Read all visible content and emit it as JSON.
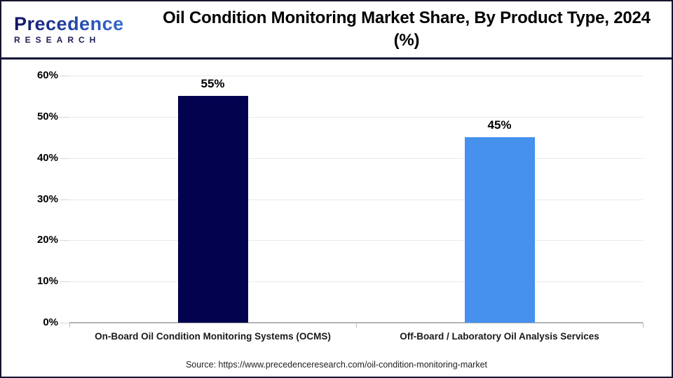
{
  "logo": {
    "word1": "Precedence",
    "word2": "RESEARCH"
  },
  "header": {
    "title": "Oil Condition Monitoring Market Share, By Product Type, 2024 (%)"
  },
  "source": "Source: https://www.precedenceresearch.com/oil-condition-monitoring-market",
  "chart_data": {
    "type": "bar",
    "title": "Oil Condition Monitoring Market Share, By Product Type, 2024 (%)",
    "categories": [
      "On-Board Oil Condition Monitoring Systems (OCMS)",
      "Off-Board / Laboratory Oil Analysis Services"
    ],
    "values": [
      55,
      45
    ],
    "value_labels": [
      "55%",
      "45%"
    ],
    "bar_colors": [
      "#02024f",
      "#4690ee"
    ],
    "xlabel": "",
    "ylabel": "",
    "ylim": [
      0,
      60
    ],
    "ytick_step": 10,
    "ytick_labels": [
      "0%",
      "10%",
      "20%",
      "30%",
      "40%",
      "50%",
      "60%"
    ],
    "grid": true,
    "legend": false
  }
}
